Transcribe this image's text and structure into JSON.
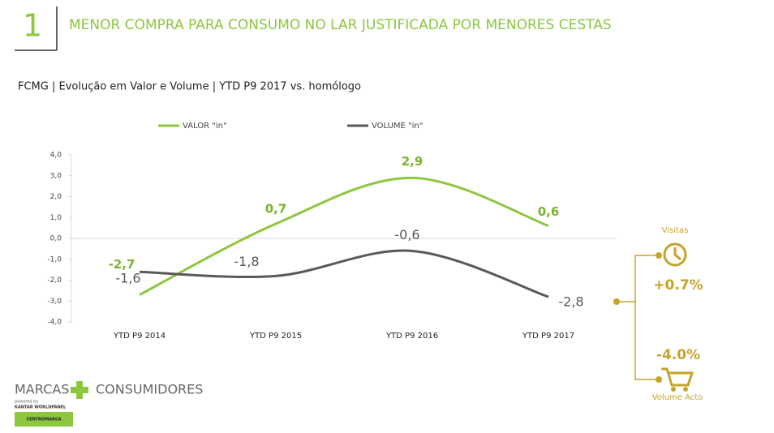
{
  "header": {
    "number": "1",
    "title": "MENOR COMPRA PARA CONSUMO NO LAR JUSTIFICADA POR MENORES CESTAS",
    "subtitle": "FCMG | Evolução em Valor e Volume | YTD P9 2017 vs. homólogo"
  },
  "chart_data": {
    "type": "line",
    "categories": [
      "YTD P9 2014",
      "YTD P9 2015",
      "YTD P9 2016",
      "YTD P9 2017"
    ],
    "series": [
      {
        "name": "VALOR \"in\"",
        "color": "#8dc63f",
        "values": [
          -2.7,
          0.7,
          2.9,
          0.6
        ],
        "value_labels": [
          "-2,7",
          "0,7",
          "2,9",
          "0,6"
        ]
      },
      {
        "name": "VOLUME \"in\"",
        "color": "#595959",
        "values": [
          -1.6,
          -1.8,
          -0.6,
          -2.8
        ],
        "value_labels": [
          "-1,6",
          "-1,8",
          "-0,6",
          "-2,8"
        ]
      }
    ],
    "ylim": [
      -4,
      4
    ],
    "yticks": [
      {
        "value": -4,
        "label": "-4,0"
      },
      {
        "value": -3,
        "label": "-3,0"
      },
      {
        "value": -2,
        "label": "-2,0"
      },
      {
        "value": -1,
        "label": "-1,0"
      },
      {
        "value": 0,
        "label": "0,0"
      },
      {
        "value": 1,
        "label": "1,0"
      },
      {
        "value": 2,
        "label": "2,0"
      },
      {
        "value": 3,
        "label": "3,0"
      },
      {
        "value": 4,
        "label": "4,0"
      }
    ],
    "legend": "top"
  },
  "side_panel": {
    "top_label": "Visitas",
    "top_value": "+0.7%",
    "bottom_value": "-4.0%",
    "bottom_label": "Volume Acto"
  },
  "logo": {
    "left": "MARCAS",
    "right": "CONSUMIDORES",
    "powered": "powered by",
    "kantar": "KANTAR WORLDPANEL",
    "badge": "CENTROMARCA"
  }
}
